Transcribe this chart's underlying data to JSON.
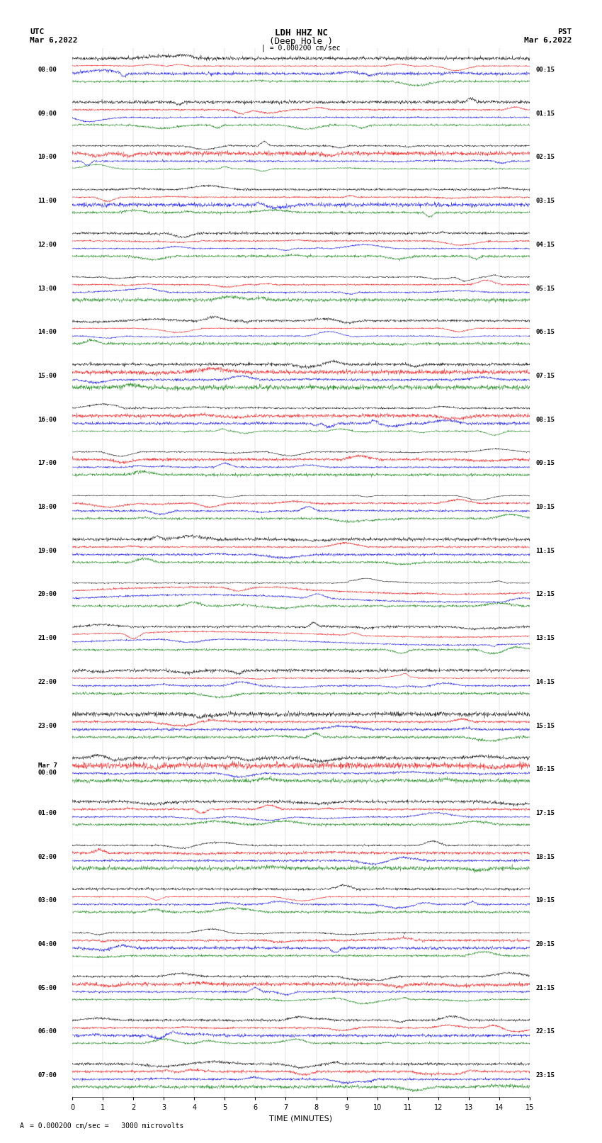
{
  "title_line1": "LDH HHZ NC",
  "title_line2": "(Deep Hole )",
  "scale_label": "| = 0.000200 cm/sec",
  "scale_label2": "= 0.000200 cm/sec =   3000 microvolts",
  "utc_label": "UTC",
  "utc_date": "Mar 6,2022",
  "pst_label": "PST",
  "pst_date": "Mar 6,2022",
  "xlabel": "TIME (MINUTES)",
  "left_times": [
    "08:00",
    "09:00",
    "10:00",
    "11:00",
    "12:00",
    "13:00",
    "14:00",
    "15:00",
    "16:00",
    "17:00",
    "18:00",
    "19:00",
    "20:00",
    "21:00",
    "22:00",
    "23:00",
    "Mar 7\n00:00",
    "01:00",
    "02:00",
    "03:00",
    "04:00",
    "05:00",
    "06:00",
    "07:00"
  ],
  "right_times": [
    "00:15",
    "01:15",
    "02:15",
    "03:15",
    "04:15",
    "05:15",
    "06:15",
    "07:15",
    "08:15",
    "09:15",
    "10:15",
    "11:15",
    "12:15",
    "13:15",
    "14:15",
    "15:15",
    "16:15",
    "17:15",
    "18:15",
    "19:15",
    "20:15",
    "21:15",
    "22:15",
    "23:15"
  ],
  "colors": [
    "black",
    "red",
    "blue",
    "green"
  ],
  "n_rows": 24,
  "traces_per_row": 4,
  "xmin": 0,
  "xmax": 15,
  "fig_width": 8.5,
  "fig_height": 16.13,
  "bg_color": "white",
  "trace_amplitude": 0.35,
  "special_row_13_amplitude": 1.2,
  "special_row_16_amplitude": 0.6,
  "special_row_5_amplitude": 0.45,
  "noise_seed": 42
}
